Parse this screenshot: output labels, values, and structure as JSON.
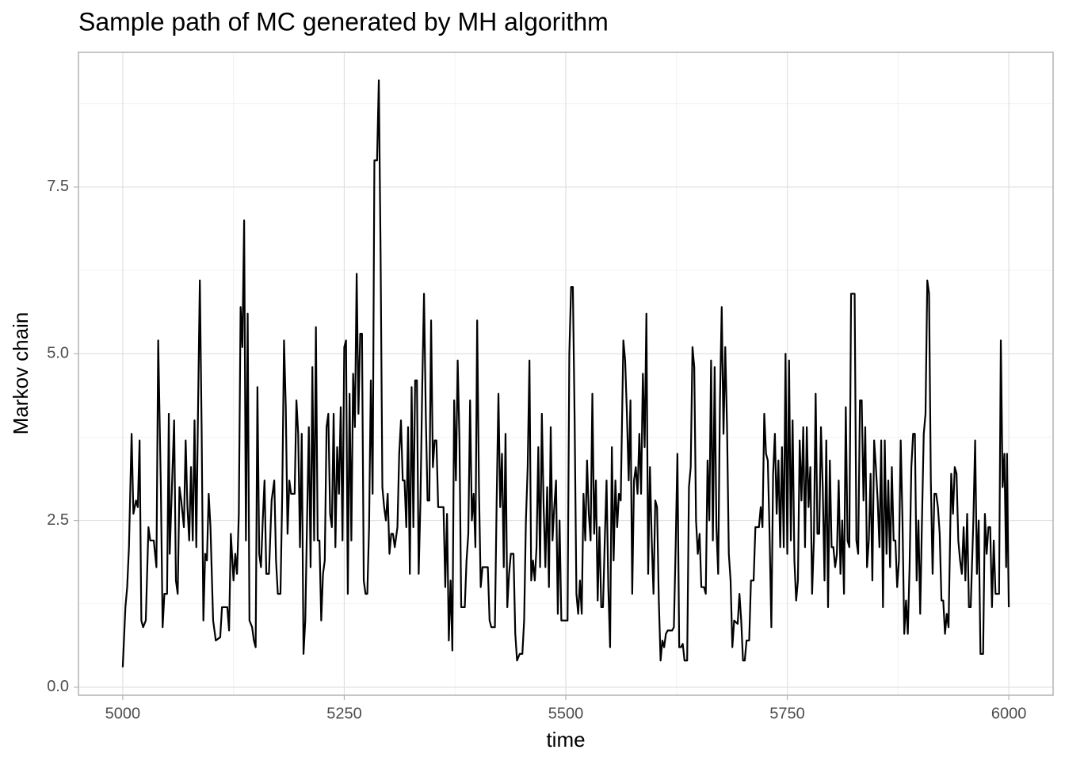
{
  "chart_data": {
    "type": "line",
    "title": "Sample path of MC generated by MH algorithm",
    "x_label": "time",
    "y_label": "Markov chain",
    "xlim": [
      4950,
      6050
    ],
    "ylim": [
      -0.12,
      9.52
    ],
    "xticks": [
      5000,
      5250,
      5500,
      5750,
      6000
    ],
    "yticks": [
      {
        "value": 0,
        "label": "0.0"
      },
      2.5,
      {
        "value": 5,
        "label": "5.0"
      },
      7.5
    ],
    "xminor": [
      5125,
      5375,
      5625,
      5875
    ],
    "yminor": [
      1.25,
      3.75,
      6.25,
      8.75
    ],
    "grid": true,
    "series": [
      {
        "color": "#000000",
        "x": [
          5000,
          5003,
          5005,
          5007,
          5010,
          5012,
          5015,
          5017,
          5019,
          5021,
          5023,
          5026,
          5029,
          5031,
          5035,
          5038,
          5040,
          5043,
          5045,
          5047,
          5050,
          5052,
          5053,
          5055,
          5058,
          5060,
          5062,
          5064,
          5066,
          5069,
          5071,
          5073,
          5075,
          5077,
          5079,
          5081,
          5083,
          5085,
          5087,
          5089,
          5091,
          5093,
          5095,
          5097,
          5099,
          5102,
          5105,
          5110,
          5112,
          5118,
          5120,
          5122,
          5125,
          5127,
          5129,
          5131,
          5133,
          5135,
          5137,
          5139,
          5141,
          5143,
          5146,
          5148,
          5150,
          5152,
          5154,
          5156,
          5158,
          5160,
          5162,
          5165,
          5168,
          5171,
          5173,
          5175,
          5178,
          5180,
          5182,
          5184,
          5186,
          5188,
          5190,
          5194,
          5196,
          5198,
          5200,
          5202,
          5204,
          5206,
          5208,
          5210,
          5212,
          5214,
          5216,
          5218,
          5220,
          5222,
          5224,
          5226,
          5228,
          5230,
          5232,
          5234,
          5236,
          5238,
          5240,
          5242,
          5244,
          5246,
          5248,
          5250,
          5252,
          5254,
          5256,
          5258,
          5260,
          5262,
          5264,
          5266,
          5268,
          5270,
          5272,
          5274,
          5276,
          5278,
          5280,
          5282,
          5284,
          5287,
          5289,
          5291,
          5293,
          5295,
          5297,
          5299,
          5301,
          5303,
          5305,
          5307,
          5310,
          5312,
          5314,
          5316,
          5318,
          5320,
          5322,
          5324,
          5326,
          5328,
          5330,
          5332,
          5334,
          5336,
          5338,
          5340,
          5342,
          5344,
          5346,
          5348,
          5350,
          5352,
          5354,
          5356,
          5362,
          5364,
          5366,
          5368,
          5370,
          5372,
          5374,
          5376,
          5378,
          5380,
          5382,
          5384,
          5386,
          5388,
          5390,
          5392,
          5394,
          5396,
          5398,
          5400,
          5402,
          5404,
          5406,
          5412,
          5414,
          5416,
          5420,
          5422,
          5424,
          5426,
          5428,
          5430,
          5432,
          5434,
          5436,
          5438,
          5441,
          5443,
          5445,
          5448,
          5451,
          5453,
          5455,
          5457,
          5459,
          5461,
          5463,
          5465,
          5467,
          5469,
          5471,
          5473,
          5475,
          5477,
          5479,
          5481,
          5483,
          5485,
          5487,
          5489,
          5491,
          5493,
          5495,
          5500,
          5502,
          5504,
          5506,
          5508,
          5510,
          5512,
          5514,
          5516,
          5518,
          5520,
          5522,
          5524,
          5526,
          5528,
          5530,
          5532,
          5534,
          5536,
          5538,
          5540,
          5542,
          5544,
          5546,
          5548,
          5550,
          5552,
          5554,
          5556,
          5558,
          5560,
          5562,
          5565,
          5567,
          5569,
          5571,
          5573,
          5575,
          5577,
          5579,
          5581,
          5583,
          5585,
          5587,
          5589,
          5591,
          5593,
          5595,
          5597,
          5599,
          5601,
          5603,
          5605,
          5607,
          5609,
          5611,
          5613,
          5615,
          5620,
          5622,
          5624,
          5626,
          5628,
          5630,
          5632,
          5634,
          5637,
          5639,
          5641,
          5643,
          5645,
          5647,
          5649,
          5651,
          5653,
          5656,
          5658,
          5660,
          5662,
          5664,
          5666,
          5668,
          5670,
          5672,
          5674,
          5676,
          5678,
          5680,
          5682,
          5684,
          5686,
          5688,
          5690,
          5694,
          5696,
          5698,
          5700,
          5702,
          5704,
          5707,
          5709,
          5712,
          5714,
          5718,
          5720,
          5722,
          5724,
          5726,
          5728,
          5730,
          5732,
          5734,
          5736,
          5738,
          5740,
          5742,
          5744,
          5746,
          5748,
          5750,
          5752,
          5754,
          5756,
          5758,
          5760,
          5762,
          5764,
          5766,
          5768,
          5770,
          5772,
          5774,
          5776,
          5778,
          5780,
          5782,
          5784,
          5786,
          5788,
          5790,
          5792,
          5794,
          5796,
          5798,
          5800,
          5802,
          5804,
          5806,
          5808,
          5810,
          5812,
          5814,
          5816,
          5818,
          5820,
          5822,
          5826,
          5828,
          5830,
          5832,
          5834,
          5836,
          5838,
          5840,
          5842,
          5844,
          5846,
          5848,
          5850,
          5852,
          5854,
          5856,
          5858,
          5860,
          5862,
          5864,
          5866,
          5868,
          5870,
          5872,
          5874,
          5876,
          5878,
          5880,
          5882,
          5884,
          5886,
          5888,
          5890,
          5892,
          5894,
          5896,
          5898,
          5900,
          5902,
          5904,
          5906,
          5908,
          5910,
          5912,
          5914,
          5916,
          5918,
          5920,
          5922,
          5924,
          5926,
          5928,
          5930,
          5932,
          5935,
          5937,
          5939,
          5941,
          5943,
          5945,
          5947,
          5949,
          5951,
          5953,
          5955,
          5957,
          5960,
          5962,
          5964,
          5966,
          5968,
          5971,
          5973,
          5975,
          5977,
          5979,
          5981,
          5983,
          5985,
          5989,
          5991,
          5993,
          5995,
          5997,
          5998,
          5999,
          6000
        ],
        "values": [
          0.3,
          1.2,
          1.5,
          2.1,
          3.8,
          2.6,
          2.8,
          2.7,
          3.7,
          1.0,
          0.9,
          1.0,
          2.4,
          2.2,
          2.2,
          1.8,
          5.2,
          3.0,
          0.9,
          1.4,
          1.4,
          4.1,
          2.0,
          2.8,
          4.0,
          1.6,
          1.4,
          3.0,
          2.8,
          2.4,
          3.7,
          2.7,
          2.2,
          3.3,
          2.2,
          4.0,
          2.1,
          4.2,
          6.1,
          3.9,
          1.0,
          2.0,
          1.9,
          2.9,
          2.4,
          1.0,
          0.7,
          0.75,
          1.2,
          1.2,
          0.85,
          2.3,
          1.6,
          2.0,
          1.7,
          2.6,
          5.7,
          5.1,
          7.0,
          2.2,
          5.6,
          1.0,
          0.9,
          0.7,
          0.6,
          4.5,
          2.0,
          1.8,
          2.5,
          3.1,
          1.7,
          1.7,
          2.8,
          3.1,
          1.9,
          1.4,
          1.4,
          2.9,
          5.2,
          4.2,
          2.3,
          3.1,
          2.9,
          2.9,
          4.3,
          3.8,
          2.1,
          3.8,
          0.5,
          1.0,
          2.5,
          3.9,
          1.8,
          4.8,
          2.2,
          5.4,
          2.2,
          2.2,
          1.0,
          1.7,
          1.9,
          3.9,
          4.1,
          2.6,
          2.4,
          4.1,
          2.1,
          3.6,
          2.9,
          4.2,
          2.2,
          5.1,
          5.2,
          1.4,
          4.4,
          2.2,
          4.7,
          3.9,
          6.2,
          4.1,
          5.3,
          5.3,
          1.6,
          1.4,
          1.4,
          2.4,
          4.6,
          2.9,
          7.9,
          7.9,
          9.1,
          6.5,
          3.0,
          2.7,
          2.5,
          2.9,
          2.0,
          2.3,
          2.3,
          2.1,
          2.4,
          3.5,
          4.0,
          3.1,
          3.1,
          2.4,
          3.9,
          1.7,
          4.5,
          2.4,
          4.6,
          4.6,
          1.7,
          2.8,
          4.5,
          5.9,
          4.1,
          2.8,
          2.8,
          5.5,
          3.3,
          3.7,
          3.7,
          2.7,
          2.7,
          1.5,
          2.6,
          0.7,
          1.6,
          0.55,
          4.3,
          3.1,
          4.9,
          3.7,
          1.2,
          1.2,
          1.2,
          1.9,
          2.3,
          4.3,
          2.5,
          2.9,
          2.1,
          5.5,
          3.0,
          1.5,
          1.8,
          1.8,
          1.0,
          0.9,
          0.9,
          2.8,
          4.4,
          2.7,
          3.5,
          1.8,
          3.8,
          1.2,
          1.7,
          2.0,
          2.0,
          0.8,
          0.4,
          0.5,
          0.5,
          1.0,
          2.5,
          3.3,
          4.9,
          1.6,
          1.9,
          1.6,
          2.1,
          3.6,
          1.8,
          4.1,
          2.7,
          1.8,
          3.0,
          1.5,
          3.9,
          2.2,
          2.7,
          3.1,
          1.1,
          2.5,
          1.0,
          1.0,
          1.0,
          5.0,
          6.0,
          6.0,
          4.0,
          1.4,
          1.1,
          1.6,
          1.1,
          2.9,
          2.2,
          3.4,
          2.6,
          2.2,
          4.4,
          2.3,
          3.1,
          1.3,
          2.4,
          1.2,
          1.2,
          2.2,
          3.1,
          1.5,
          0.6,
          3.6,
          1.9,
          3.1,
          2.4,
          2.9,
          2.8,
          5.2,
          4.9,
          4.1,
          3.1,
          4.3,
          1.4,
          3.1,
          3.3,
          2.9,
          3.8,
          2.9,
          4.7,
          3.6,
          5.6,
          1.7,
          3.3,
          2.2,
          1.4,
          2.8,
          2.7,
          1.3,
          0.4,
          0.7,
          0.6,
          0.8,
          0.85,
          0.85,
          0.9,
          2.1,
          3.5,
          0.6,
          0.6,
          0.65,
          0.4,
          0.4,
          3.0,
          3.3,
          5.1,
          4.8,
          2.5,
          2.0,
          2.3,
          1.5,
          1.5,
          1.4,
          3.4,
          2.5,
          4.9,
          2.2,
          4.8,
          2.4,
          1.7,
          4.3,
          5.7,
          3.8,
          5.1,
          3.9,
          2.0,
          1.6,
          0.6,
          1.0,
          0.95,
          1.4,
          1.0,
          0.4,
          0.4,
          0.7,
          0.7,
          1.6,
          1.6,
          2.4,
          2.4,
          2.7,
          2.4,
          4.1,
          3.5,
          3.4,
          2.3,
          0.9,
          3.2,
          3.8,
          2.6,
          3.4,
          2.1,
          3.6,
          2.1,
          5.0,
          2.0,
          4.9,
          2.2,
          4.0,
          1.9,
          1.3,
          1.6,
          3.7,
          2.8,
          3.9,
          2.1,
          3.9,
          2.7,
          3.3,
          1.4,
          2.2,
          4.4,
          2.3,
          2.3,
          3.9,
          3.0,
          1.6,
          3.7,
          1.2,
          3.4,
          2.1,
          2.1,
          1.8,
          2.0,
          3.1,
          1.7,
          2.5,
          1.4,
          4.2,
          2.2,
          2.1,
          5.9,
          5.9,
          2.2,
          2.0,
          4.3,
          4.3,
          2.8,
          3.9,
          1.8,
          2.2,
          3.2,
          1.6,
          3.7,
          3.3,
          2.8,
          2.1,
          3.7,
          1.2,
          3.7,
          2.0,
          3.1,
          1.8,
          3.3,
          2.2,
          2.2,
          1.5,
          1.9,
          3.7,
          2.5,
          0.8,
          1.3,
          0.8,
          1.8,
          3.3,
          3.8,
          3.8,
          1.6,
          2.5,
          1.1,
          2.5,
          3.8,
          4.1,
          6.1,
          5.9,
          3.1,
          1.7,
          2.9,
          2.9,
          2.7,
          2.3,
          1.3,
          1.3,
          0.8,
          1.1,
          0.9,
          3.2,
          2.6,
          3.3,
          3.2,
          2.2,
          1.9,
          1.7,
          2.4,
          1.6,
          2.6,
          1.2,
          1.2,
          2.5,
          3.7,
          1.7,
          2.5,
          0.5,
          0.5,
          2.6,
          2.0,
          2.4,
          2.4,
          1.2,
          2.2,
          1.4,
          1.4,
          5.2,
          3.0,
          3.5,
          1.8,
          3.5,
          2.2,
          1.2
        ]
      }
    ]
  }
}
